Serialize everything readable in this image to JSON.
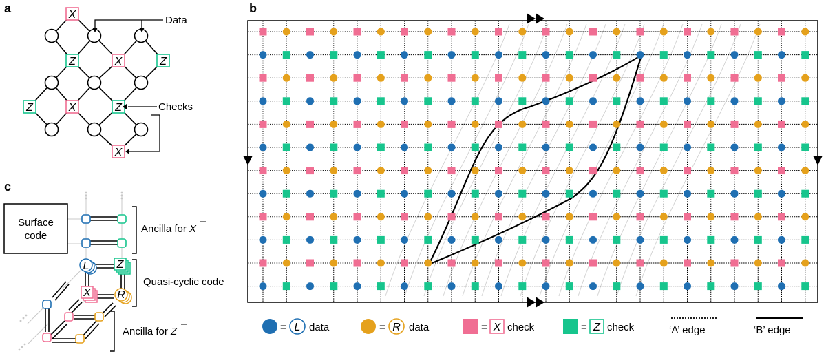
{
  "panel_a": {
    "letter": "a",
    "nodes": {
      "x1": "X",
      "z1": "Z",
      "x2": "X",
      "z2": "Z",
      "z3": "Z",
      "x3": "X",
      "z4": "Z",
      "x4": "X"
    },
    "label_data": "Data",
    "label_checks": "Checks"
  },
  "panel_b": {
    "letter": "b",
    "legend": {
      "equals": "=",
      "l_symbol": "L",
      "l_text": "data",
      "r_symbol": "R",
      "r_text": "data",
      "x_symbol": "X",
      "x_text": "check",
      "z_symbol": "Z",
      "z_text": "check",
      "a_edge": "‘A’ edge",
      "b_edge": "‘B’ edge"
    }
  },
  "panel_c": {
    "letter": "c",
    "surface_line1": "Surface",
    "surface_line2": "code",
    "ancilla_x_prefix": "Ancilla for ",
    "ancilla_x_symbol": "X",
    "quasi_cyclic": "Quasi-cyclic code",
    "ancilla_z_prefix": "Ancilla for ",
    "ancilla_z_symbol": "Z",
    "cube_l": "L",
    "cube_z": "Z",
    "cube_x": "X",
    "cube_r": "R"
  },
  "colors": {
    "blue": "#1f6fb2",
    "orange": "#e5a11c",
    "pink": "#f06e93",
    "green": "#17c58d",
    "grid_gray": "#bfbfbf"
  }
}
